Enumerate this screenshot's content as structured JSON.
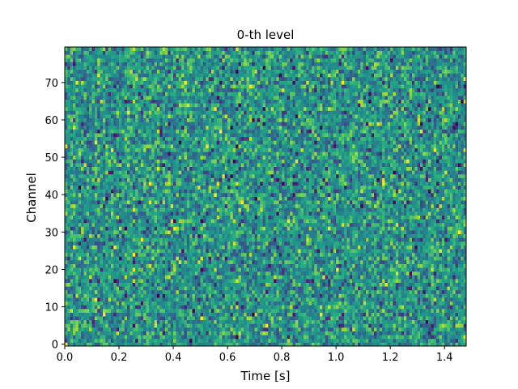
{
  "chart_data": {
    "type": "heatmap",
    "title": "0-th level",
    "xlabel": "Time [s]",
    "ylabel": "Channel",
    "xlim": [
      0.0,
      1.48
    ],
    "ylim": [
      -0.5,
      79.5
    ],
    "x_ticks": [
      0.0,
      0.2,
      0.4,
      0.6,
      0.8,
      1.0,
      1.2,
      1.4
    ],
    "x_tick_labels": [
      "0.0",
      "0.2",
      "0.4",
      "0.6",
      "0.8",
      "1.0",
      "1.2",
      "1.4"
    ],
    "y_ticks": [
      0,
      10,
      20,
      30,
      40,
      50,
      60,
      70
    ],
    "y_tick_labels": [
      "0",
      "10",
      "20",
      "30",
      "40",
      "50",
      "60",
      "70"
    ],
    "grid": false,
    "colormap": "viridis",
    "n_channels": 80,
    "n_time_bins": 148,
    "time_bin_width_s": 0.01,
    "value_description": "noise-like intensities (normalized 0-1), mostly mid-range teal/green with scattered dark-blue and yellow cells"
  }
}
